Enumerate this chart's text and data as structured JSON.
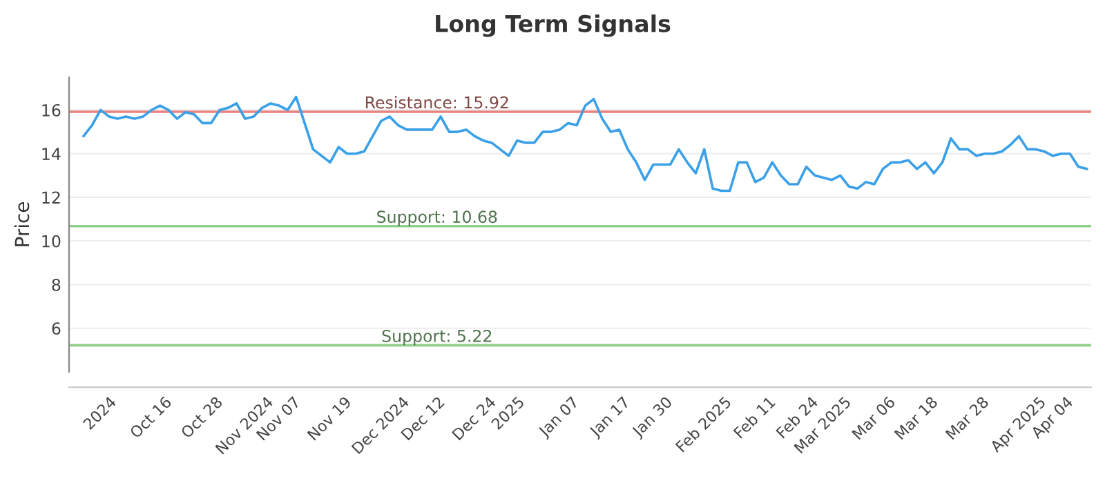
{
  "chart_data": {
    "type": "line",
    "title": "Long Term Signals",
    "ylabel": "Price",
    "categories": [
      null,
      null,
      "2024",
      null,
      null,
      null,
      null,
      null,
      "Oct 16",
      null,
      null,
      null,
      null,
      null,
      "Oct 28",
      null,
      null,
      null,
      null,
      "Nov 2024",
      null,
      null,
      null,
      "Nov 07",
      null,
      null,
      null,
      null,
      null,
      "Nov 19",
      null,
      null,
      null,
      null,
      null,
      "Dec 2024",
      null,
      null,
      null,
      null,
      "Dec 12",
      null,
      null,
      null,
      null,
      null,
      "Dec 24",
      null,
      null,
      null,
      "2025",
      null,
      null,
      null,
      null,
      null,
      "Jan 07",
      null,
      null,
      null,
      null,
      null,
      "Jan 17",
      null,
      null,
      null,
      null,
      "Jan 30",
      null,
      null,
      null,
      null,
      null,
      "Feb 2025",
      null,
      null,
      null,
      null,
      null,
      "Feb 11",
      null,
      null,
      null,
      null,
      "Feb 24",
      null,
      null,
      "Mar 2025",
      null,
      null,
      null,
      null,
      null,
      "Mar 06",
      null,
      null,
      null,
      null,
      "Mar 18",
      null,
      null,
      null,
      null,
      null,
      "Mar 28",
      null,
      null,
      null,
      null,
      null,
      "Apr 2025",
      null,
      null,
      null,
      "Apr 04",
      null,
      null,
      null,
      null
    ],
    "series": [
      {
        "color": "#3aa0e8",
        "values": [
          14.8,
          15.3,
          16.0,
          15.7,
          15.6,
          15.7,
          15.6,
          15.7,
          16.0,
          16.2,
          16.0,
          15.6,
          15.9,
          15.8,
          15.4,
          15.4,
          16.0,
          16.1,
          16.3,
          15.6,
          15.7,
          16.1,
          16.3,
          16.2,
          16.0,
          16.6,
          15.4,
          14.2,
          13.9,
          13.6,
          14.3,
          14.0,
          14.0,
          14.1,
          14.8,
          15.5,
          15.7,
          15.3,
          15.1,
          15.1,
          15.1,
          15.1,
          15.7,
          15.0,
          15.0,
          15.1,
          14.8,
          14.6,
          14.5,
          14.2,
          13.9,
          14.6,
          14.5,
          14.5,
          15.0,
          15.0,
          15.1,
          15.4,
          15.3,
          16.2,
          16.5,
          15.6,
          15.0,
          15.1,
          14.2,
          13.6,
          12.8,
          13.5,
          13.5,
          13.5,
          14.2,
          13.6,
          13.1,
          14.2,
          12.4,
          12.3,
          12.3,
          13.6,
          13.6,
          12.7,
          12.9,
          13.6,
          13.0,
          12.6,
          12.6,
          13.4,
          13.0,
          12.9,
          12.8,
          13.0,
          12.5,
          12.4,
          12.7,
          12.6,
          13.3,
          13.6,
          13.6,
          13.7,
          13.3,
          13.6,
          13.1,
          13.6,
          14.7,
          14.2,
          14.2,
          13.9,
          14.0,
          14.0,
          14.1,
          14.4,
          14.8,
          14.2,
          14.2,
          14.1,
          13.9,
          14.0,
          14.0,
          13.4,
          13.3
        ]
      }
    ],
    "ylim": [
      4,
      17.5
    ],
    "yticks": [
      6,
      8,
      10,
      12,
      14,
      16
    ],
    "grid": "y",
    "ref_lines": [
      {
        "axis": "y",
        "value": 15.92,
        "label": "Resistance: 15.92",
        "color": "#e8837f"
      },
      {
        "axis": "y",
        "value": 10.68,
        "label": "Support: 10.68",
        "color": "#8fd08a"
      },
      {
        "axis": "y",
        "value": 5.22,
        "label": "Support: 5.22",
        "color": "#8fd08a"
      }
    ]
  }
}
